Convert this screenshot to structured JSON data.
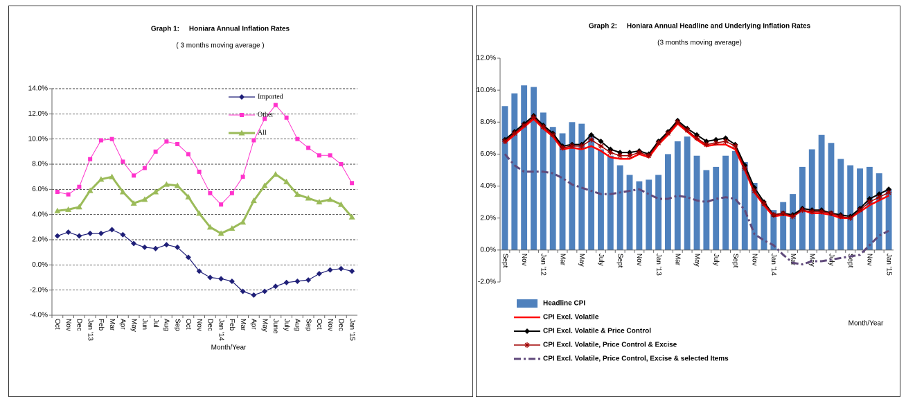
{
  "chart_data": [
    {
      "type": "line",
      "title": "Graph 1:     Honiara Annual Inflation Rates",
      "subtitle": "( 3 months moving average )",
      "x_label": "Month/Year",
      "categories": [
        "Oct",
        "Nov",
        "Dec",
        "Jan '13",
        "Feb",
        "Mar",
        "Apr",
        "May",
        "Jun",
        "Jul",
        "Aug",
        "Sep",
        "Oct",
        "Nov",
        "Dec",
        "Jan '14",
        "Feb",
        "Mar",
        "Apr",
        "May",
        "June",
        "July",
        "Aug",
        "Sep",
        "Oct",
        "Nov",
        "Dec",
        "Jan '15"
      ],
      "series": [
        {
          "name": "Imported",
          "color": "#1f1f78",
          "marker": "diamond",
          "width": 1.2,
          "values": [
            2.3,
            2.6,
            2.3,
            2.5,
            2.5,
            2.8,
            2.4,
            1.7,
            1.4,
            1.3,
            1.6,
            1.4,
            0.6,
            -0.5,
            -1.0,
            -1.1,
            -1.3,
            -2.1,
            -2.4,
            -2.1,
            -1.7,
            -1.4,
            -1.3,
            -1.2,
            -0.7,
            -0.4,
            -0.3,
            -0.5
          ]
        },
        {
          "name": "Other",
          "color": "#ff33cc",
          "marker": "square",
          "width": 1,
          "values": [
            5.8,
            5.6,
            6.2,
            8.4,
            9.9,
            10.0,
            8.2,
            7.1,
            7.7,
            9.0,
            9.8,
            9.6,
            8.8,
            7.4,
            5.7,
            4.8,
            5.7,
            7.0,
            9.9,
            11.6,
            12.7,
            11.7,
            10.0,
            9.3,
            8.7,
            8.7,
            8.0,
            6.5
          ]
        },
        {
          "name": "All",
          "color": "#9bbb59",
          "marker": "triangle",
          "width": 3,
          "values": [
            4.3,
            4.4,
            4.6,
            5.9,
            6.8,
            7.0,
            5.8,
            4.9,
            5.2,
            5.8,
            6.4,
            6.3,
            5.4,
            4.1,
            3.0,
            2.5,
            2.9,
            3.4,
            5.1,
            6.3,
            7.2,
            6.6,
            5.6,
            5.3,
            5.0,
            5.2,
            4.8,
            3.8
          ]
        }
      ],
      "ylim": [
        -4,
        14
      ],
      "yticks": [
        {
          "value": -4,
          "label": "-4.0%"
        },
        {
          "value": -2,
          "label": "-2.0%"
        },
        {
          "value": 0,
          "label": "0.0%"
        },
        {
          "value": 2,
          "label": "2.0%"
        },
        {
          "value": 4,
          "label": "4.0%"
        },
        {
          "value": 6,
          "label": "6.0%"
        },
        {
          "value": 8,
          "label": "8.0%"
        },
        {
          "value": 10,
          "label": "10.0%"
        },
        {
          "value": 12,
          "label": "12.0%"
        },
        {
          "value": 14,
          "label": "14.0%"
        }
      ],
      "grid": true,
      "legend": "top"
    },
    {
      "type": "combo",
      "title": "Graph 2:     Honiara Annual Headline and Underlying Inflation Rates",
      "subtitle": "(3 months moving average)",
      "x_label": "Month/Year",
      "categories": [
        "Sept",
        null,
        "Nov",
        null,
        "Jan '12",
        null,
        "Mar",
        null,
        "May",
        null,
        "July",
        null,
        "Sept",
        null,
        "Nov",
        null,
        "Jan '13",
        null,
        "Mar",
        null,
        "May",
        null,
        "July",
        null,
        "Sept",
        null,
        "Nov",
        null,
        "Jan '14",
        null,
        "Mar",
        null,
        "May",
        null,
        "July",
        null,
        "Sept",
        null,
        "Nov",
        null,
        "Jan '15"
      ],
      "series": [
        {
          "name": "Headline CPI",
          "type": "bar",
          "color": "#4f81bd",
          "values": [
            9.0,
            9.8,
            10.3,
            10.2,
            8.6,
            7.7,
            7.3,
            8.0,
            7.9,
            7.2,
            6.3,
            5.9,
            5.3,
            4.7,
            4.3,
            4.4,
            4.7,
            6.0,
            6.8,
            7.1,
            5.9,
            5.0,
            5.2,
            5.9,
            6.2,
            5.5,
            4.2,
            2.9,
            2.5,
            3.0,
            3.5,
            5.2,
            6.3,
            7.2,
            6.7,
            5.7,
            5.3,
            5.1,
            5.2,
            4.8,
            3.8
          ]
        },
        {
          "name": "CPI Excl. Volatile",
          "type": "line",
          "color": "#ff0000",
          "marker": "none",
          "width": 2.5,
          "values": [
            6.7,
            7.2,
            7.7,
            8.2,
            7.6,
            7.1,
            6.3,
            6.4,
            6.3,
            6.5,
            6.2,
            5.8,
            5.7,
            5.7,
            6.0,
            5.8,
            6.6,
            7.2,
            7.9,
            7.4,
            6.9,
            6.5,
            6.6,
            6.6,
            6.3,
            5.0,
            3.6,
            2.8,
            2.1,
            2.2,
            2.1,
            2.5,
            2.3,
            2.3,
            2.2,
            2.0,
            2.0,
            2.4,
            2.8,
            3.1,
            3.4
          ]
        },
        {
          "name": "CPI Excl. Volatile & Price Control",
          "type": "line",
          "color": "#000000",
          "marker": "diamond",
          "width": 2,
          "values": [
            6.9,
            7.4,
            7.9,
            8.4,
            7.8,
            7.3,
            6.5,
            6.6,
            6.6,
            7.2,
            6.8,
            6.3,
            6.1,
            6.1,
            6.2,
            6.0,
            6.8,
            7.4,
            8.1,
            7.6,
            7.2,
            6.8,
            6.9,
            7.0,
            6.6,
            5.3,
            3.9,
            3.0,
            2.2,
            2.3,
            2.2,
            2.6,
            2.5,
            2.5,
            2.3,
            2.2,
            2.1,
            2.6,
            3.2,
            3.5,
            3.8
          ]
        },
        {
          "name": "CPI Excl. Volatile, Price Control & Excise",
          "type": "line",
          "color": "#a00000",
          "marker": "star",
          "width": 1.5,
          "values": [
            6.8,
            7.3,
            7.8,
            8.3,
            7.7,
            7.2,
            6.4,
            6.5,
            6.5,
            6.9,
            6.5,
            6.1,
            5.9,
            5.9,
            6.1,
            5.9,
            6.7,
            7.3,
            8.0,
            7.5,
            7.0,
            6.6,
            6.7,
            6.8,
            6.5,
            5.1,
            3.7,
            2.9,
            2.2,
            2.3,
            2.1,
            2.5,
            2.4,
            2.4,
            2.3,
            2.1,
            2.0,
            2.5,
            3.0,
            3.3,
            3.6
          ]
        },
        {
          "name": "CPI Excl. Volatile, Price Control, Excise & selected Items",
          "type": "line",
          "color": "#604a7b",
          "marker": "none",
          "width": 3,
          "dash": true,
          "values": [
            6.0,
            5.3,
            4.9,
            4.9,
            4.9,
            4.8,
            4.5,
            4.1,
            3.9,
            3.7,
            3.5,
            3.5,
            3.6,
            3.7,
            3.8,
            3.5,
            3.2,
            3.2,
            3.4,
            3.3,
            3.1,
            3.0,
            3.2,
            3.3,
            3.2,
            2.5,
            1.0,
            0.6,
            0.3,
            -0.3,
            -0.8,
            -0.9,
            -0.7,
            -0.7,
            -0.6,
            -0.5,
            -0.4,
            -0.3,
            0.3,
            0.9,
            1.2
          ]
        }
      ],
      "ylim": [
        -2,
        12
      ],
      "yticks": [
        {
          "value": -2,
          "label": "-2.0%"
        },
        {
          "value": 0,
          "label": "0.0%"
        },
        {
          "value": 2,
          "label": "2.0%"
        },
        {
          "value": 4,
          "label": "4.0%"
        },
        {
          "value": 6,
          "label": "6.0%"
        },
        {
          "value": 8,
          "label": "8.0%"
        },
        {
          "value": 10,
          "label": "10.0%"
        },
        {
          "value": 12,
          "label": "12.0%"
        }
      ],
      "grid": false,
      "legend": "bottom"
    }
  ]
}
